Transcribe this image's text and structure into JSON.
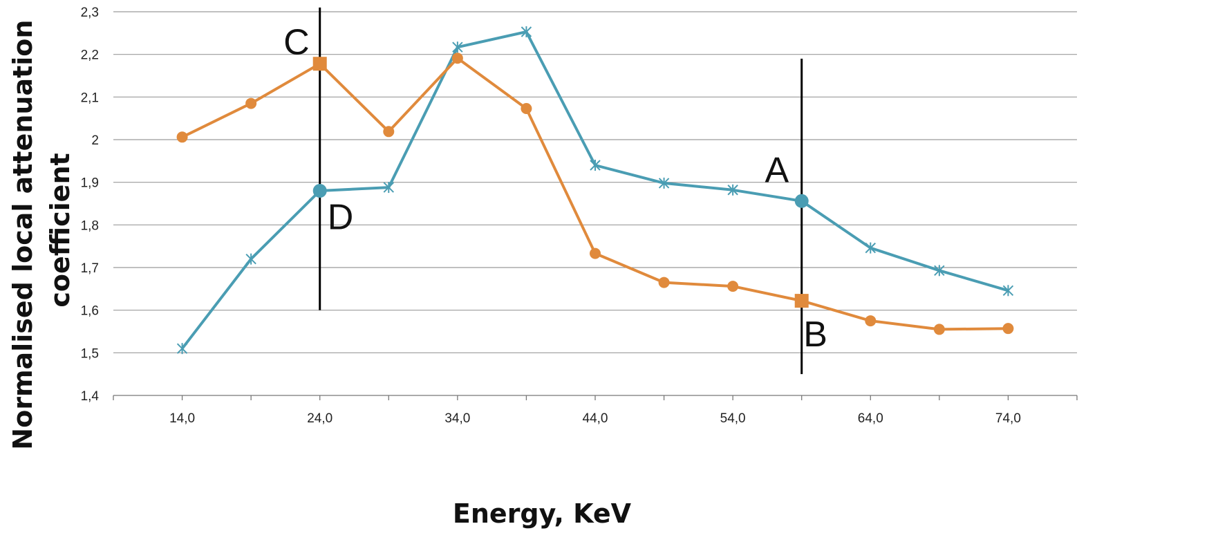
{
  "chart_data": {
    "type": "line",
    "title": "",
    "xlabel": "Energy, KeV",
    "ylabel_lines": [
      "Normalised local attenuation",
      "coefficient"
    ],
    "xlim": [
      9,
      79
    ],
    "ylim": [
      1.4,
      2.3
    ],
    "y_ticks": [
      1.4,
      1.5,
      1.6,
      1.7,
      1.8,
      1.9,
      2.0,
      2.1,
      2.2,
      2.3
    ],
    "y_tick_labels": [
      "1,4",
      "1,5",
      "1,6",
      "1,7",
      "1,8",
      "1,9",
      "2",
      "2,1",
      "2,2",
      "2,3"
    ],
    "x_minor_ticks": [
      9,
      14,
      19,
      24,
      29,
      34,
      39,
      44,
      49,
      54,
      59,
      64,
      69,
      74,
      79
    ],
    "x_ticks": [
      14,
      24,
      34,
      44,
      54,
      64,
      74
    ],
    "x_tick_labels": [
      "14,0",
      "24,0",
      "34,0",
      "44,0",
      "54,0",
      "64,0",
      "74,0"
    ],
    "grid": true,
    "legend": "none",
    "x": [
      14,
      19,
      24,
      29,
      34,
      39,
      44,
      49,
      54,
      59,
      64,
      69,
      74
    ],
    "series": [
      {
        "color": "#4a9db3",
        "marker": "star",
        "values": [
          1.51,
          1.72,
          1.88,
          1.888,
          2.217,
          2.253,
          1.94,
          1.898,
          1.882,
          1.856,
          1.746,
          1.693,
          1.646
        ],
        "highlight_points": [
          {
            "x": 24,
            "y": 1.88,
            "marker": "circle"
          },
          {
            "x": 59,
            "y": 1.856,
            "marker": "circle"
          }
        ]
      },
      {
        "color": "#e08a3c",
        "marker": "circle",
        "values": [
          2.006,
          2.085,
          2.178,
          2.019,
          2.191,
          2.073,
          1.733,
          1.665,
          1.656,
          1.622,
          1.575,
          1.555,
          1.557
        ],
        "highlight_points": [
          {
            "x": 24,
            "y": 2.178,
            "marker": "square"
          },
          {
            "x": 59,
            "y": 1.622,
            "marker": "square"
          }
        ]
      }
    ],
    "vertical_lines": [
      {
        "x": 24,
        "y_from": 1.6,
        "y_to": 2.31
      },
      {
        "x": 59,
        "y_from": 1.45,
        "y_to": 2.19
      }
    ],
    "annotations": [
      {
        "text": "C",
        "x": 22.3,
        "y": 2.2
      },
      {
        "text": "D",
        "x": 25.5,
        "y": 1.79
      },
      {
        "text": "A",
        "x": 57.2,
        "y": 1.9
      },
      {
        "text": "B",
        "x": 60.0,
        "y": 1.515
      }
    ]
  }
}
